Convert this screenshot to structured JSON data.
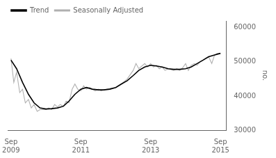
{
  "chart_data": {
    "type": "line",
    "ylabel": "no.",
    "ylim": [
      30000,
      62000
    ],
    "yticks": [
      30000,
      40000,
      50000,
      60000
    ],
    "xlim": [
      2009.58,
      2015.83
    ],
    "xticks": [
      {
        "value": 2009.67,
        "label": "Sep\n2009"
      },
      {
        "value": 2011.67,
        "label": "Sep\n2011"
      },
      {
        "value": 2013.67,
        "label": "Sep\n2013"
      },
      {
        "value": 2015.67,
        "label": "Sep\n2015"
      }
    ],
    "grid": false,
    "legend": "upper left",
    "series": [
      {
        "name": "Trend",
        "color": "#000000",
        "x": [
          2009.67,
          2009.83,
          2010.0,
          2010.17,
          2010.33,
          2010.5,
          2010.67,
          2010.83,
          2011.0,
          2011.17,
          2011.33,
          2011.5,
          2011.67,
          2011.83,
          2012.0,
          2012.17,
          2012.33,
          2012.5,
          2012.67,
          2012.83,
          2013.0,
          2013.17,
          2013.33,
          2013.5,
          2013.67,
          2013.83,
          2014.0,
          2014.17,
          2014.33,
          2014.5,
          2014.67,
          2014.83,
          2015.0,
          2015.17,
          2015.33,
          2015.5,
          2015.67
        ],
        "values": [
          50500,
          48000,
          44000,
          40500,
          38000,
          36500,
          36200,
          36300,
          36500,
          37000,
          38500,
          40500,
          42000,
          42500,
          42000,
          41800,
          41800,
          42000,
          42500,
          43500,
          44500,
          46000,
          47500,
          48500,
          49000,
          48800,
          48500,
          48000,
          47800,
          47800,
          48000,
          48500,
          49500,
          50500,
          51500,
          52000,
          52500
        ]
      },
      {
        "name": "Seasonally Adjusted",
        "color": "#b0b0b0",
        "x": [
          2009.67,
          2009.75,
          2009.83,
          2009.92,
          2010.0,
          2010.08,
          2010.17,
          2010.25,
          2010.33,
          2010.42,
          2010.5,
          2010.58,
          2010.67,
          2010.75,
          2010.83,
          2010.92,
          2011.0,
          2011.08,
          2011.17,
          2011.25,
          2011.33,
          2011.42,
          2011.5,
          2011.58,
          2011.67,
          2011.75,
          2011.83,
          2011.92,
          2012.0,
          2012.08,
          2012.17,
          2012.25,
          2012.33,
          2012.5,
          2012.67,
          2012.83,
          2013.0,
          2013.17,
          2013.25,
          2013.33,
          2013.5,
          2013.58,
          2013.67,
          2013.75,
          2013.83,
          2013.92,
          2014.0,
          2014.08,
          2014.17,
          2014.33,
          2014.42,
          2014.5,
          2014.58,
          2014.67,
          2014.75,
          2014.83,
          2014.92,
          2015.0,
          2015.08,
          2015.17,
          2015.25,
          2015.33,
          2015.42,
          2015.5,
          2015.58,
          2015.67
        ],
        "values": [
          51000,
          44000,
          47000,
          41000,
          42000,
          38000,
          39000,
          36500,
          37500,
          35500,
          36000,
          36000,
          36000,
          36500,
          36000,
          37500,
          36800,
          37500,
          37000,
          38500,
          38000,
          42000,
          43500,
          42000,
          41500,
          43000,
          42000,
          42500,
          42000,
          41500,
          42000,
          41500,
          41800,
          42200,
          42500,
          43500,
          45000,
          47500,
          49500,
          48000,
          49500,
          48500,
          49500,
          48500,
          49000,
          48000,
          48500,
          47500,
          48000,
          47500,
          48000,
          47500,
          48200,
          49500,
          47500,
          49000,
          49500,
          49000,
          50000,
          50500,
          51000,
          51500,
          49500,
          52000,
          52500,
          52500
        ]
      }
    ]
  }
}
